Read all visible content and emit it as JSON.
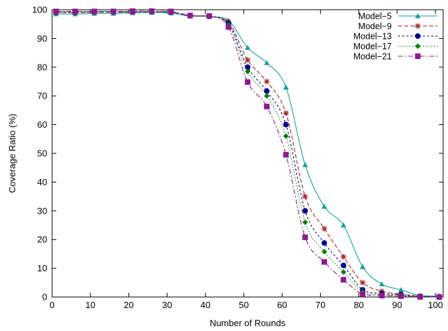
{
  "chart_data": {
    "type": "line",
    "xlabel": "Number of Rounds",
    "ylabel": "Coverage Ratio (%)",
    "xlim": [
      0,
      102
    ],
    "ylim": [
      0,
      100
    ],
    "xticks": [
      0,
      10,
      20,
      30,
      40,
      50,
      60,
      70,
      80,
      90,
      100
    ],
    "yticks": [
      0,
      10,
      20,
      30,
      40,
      50,
      60,
      70,
      80,
      90,
      100
    ],
    "grid": false,
    "legend_position": "top-right",
    "x": [
      1,
      6,
      11,
      16,
      21,
      26,
      31,
      36,
      41,
      46,
      51,
      56,
      61,
      66,
      71,
      76,
      81,
      86,
      91,
      96,
      101
    ],
    "series": [
      {
        "name": "Model−5",
        "color": "#1a9e9e",
        "dash": "",
        "marker": "triangle",
        "values": [
          98.5,
          98.5,
          98.7,
          98.7,
          98.9,
          99.0,
          98.8,
          97.8,
          97.7,
          96.3,
          86.8,
          81.5,
          73.0,
          46.0,
          31.5,
          25.0,
          10.5,
          4.5,
          2.5,
          0.5,
          0.3
        ]
      },
      {
        "name": "Model−9",
        "color": "#a52a2a",
        "dash": "6,3",
        "marker": "star",
        "values": [
          99.0,
          99.0,
          99.1,
          99.1,
          99.2,
          99.3,
          99.1,
          97.9,
          97.7,
          95.8,
          82.5,
          75.0,
          64.0,
          35.0,
          23.8,
          14.0,
          5.0,
          2.0,
          1.0,
          0.3,
          0.1
        ]
      },
      {
        "name": "Model−13",
        "color": "#00008b",
        "dash": "3,3",
        "marker": "circle",
        "values": [
          99.2,
          99.2,
          99.3,
          99.3,
          99.3,
          99.4,
          99.2,
          97.9,
          97.7,
          95.3,
          80.0,
          71.7,
          60.0,
          30.0,
          18.8,
          11.0,
          2.5,
          1.2,
          0.8,
          0.2,
          0.1
        ]
      },
      {
        "name": "Model−17",
        "color": "#008000",
        "dash": "1.5,2.5",
        "marker": "diamond",
        "values": [
          99.3,
          99.3,
          99.3,
          99.4,
          99.4,
          99.4,
          99.3,
          98.0,
          97.8,
          94.8,
          78.5,
          70.0,
          56.0,
          26.0,
          15.8,
          8.7,
          1.8,
          0.8,
          0.5,
          0.1,
          0.05
        ]
      },
      {
        "name": "Model−21",
        "color": "#8b1a8b",
        "dash": "7,3,2,3",
        "marker": "square",
        "values": [
          99.4,
          99.4,
          99.4,
          99.4,
          99.5,
          99.5,
          99.4,
          98.0,
          97.8,
          94.0,
          74.8,
          66.3,
          49.5,
          20.8,
          12.2,
          6.0,
          1.0,
          0.5,
          0.3,
          0.05,
          0.0
        ]
      }
    ]
  }
}
